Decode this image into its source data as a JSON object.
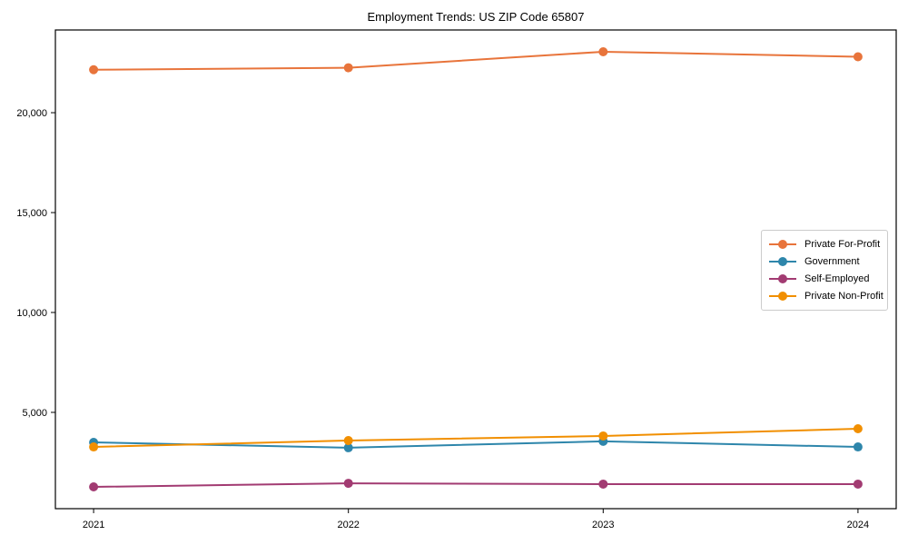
{
  "chart_data": {
    "type": "line",
    "title": "Employment Trends: US ZIP Code 65807",
    "xlabel": "",
    "ylabel": "",
    "categories": [
      "2021",
      "2022",
      "2023",
      "2024"
    ],
    "series": [
      {
        "name": "Private For-Profit",
        "color": "#e8743b",
        "values": [
          22150,
          22250,
          23050,
          22800
        ]
      },
      {
        "name": "Government",
        "color": "#2e86ab",
        "values": [
          3500,
          3230,
          3550,
          3270
        ]
      },
      {
        "name": "Self-Employed",
        "color": "#a23b72",
        "values": [
          1270,
          1450,
          1410,
          1410
        ]
      },
      {
        "name": "Private Non-Profit",
        "color": "#f18f01",
        "values": [
          3270,
          3590,
          3820,
          4180
        ]
      }
    ],
    "yticks": [
      {
        "value": 5000,
        "label": "5,000"
      },
      {
        "value": 10000,
        "label": "10,000"
      },
      {
        "value": 15000,
        "label": "15,000"
      },
      {
        "value": 20000,
        "label": "20,000"
      }
    ],
    "xlim": [
      -0.15,
      3.15
    ],
    "ylim": [
      180,
      24140
    ],
    "grid": false,
    "legend_position": "center-right",
    "axis_color": "#000000",
    "marker_radius": 5,
    "line_width": 2
  }
}
